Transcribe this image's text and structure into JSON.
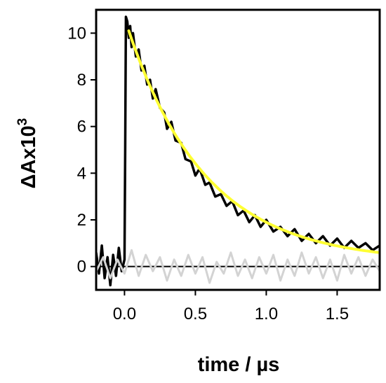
{
  "chart_data": {
    "type": "line",
    "title": "",
    "xlabel": "time / µs",
    "ylabel": {
      "base": "ΔAx10",
      "superscript": "3"
    },
    "xlim": [
      -0.2,
      1.8
    ],
    "ylim": [
      -1,
      11
    ],
    "xticks": [
      0.0,
      0.5,
      1.0,
      1.5
    ],
    "xtick_labels": [
      "0.0",
      "0.5",
      "1.0",
      "1.5"
    ],
    "yticks": [
      0,
      2,
      4,
      6,
      8,
      10
    ],
    "ytick_labels": [
      "0",
      "2",
      "4",
      "6",
      "8",
      "10"
    ],
    "grid": false,
    "legend": "none",
    "baseline_y": 0,
    "series": [
      {
        "role": "measured transient (noisy)",
        "color": "#000000",
        "points": [
          [
            -0.2,
            0.6
          ],
          [
            -0.18,
            -0.3
          ],
          [
            -0.16,
            0.9
          ],
          [
            -0.14,
            -0.5
          ],
          [
            -0.12,
            0.4
          ],
          [
            -0.1,
            -0.8
          ],
          [
            -0.08,
            0.5
          ],
          [
            -0.06,
            -0.4
          ],
          [
            -0.04,
            0.8
          ],
          [
            -0.02,
            -0.2
          ],
          [
            0.0,
            0.3
          ],
          [
            0.005,
            5.0
          ],
          [
            0.01,
            10.7
          ],
          [
            0.02,
            10.5
          ],
          [
            0.03,
            9.8
          ],
          [
            0.04,
            10.3
          ],
          [
            0.05,
            9.4
          ],
          [
            0.06,
            10.0
          ],
          [
            0.08,
            9.0
          ],
          [
            0.1,
            9.3
          ],
          [
            0.12,
            8.4
          ],
          [
            0.14,
            8.6
          ],
          [
            0.16,
            7.8
          ],
          [
            0.18,
            8.0
          ],
          [
            0.2,
            7.2
          ],
          [
            0.22,
            7.6
          ],
          [
            0.25,
            6.8
          ],
          [
            0.28,
            6.6
          ],
          [
            0.3,
            5.9
          ],
          [
            0.33,
            6.2
          ],
          [
            0.36,
            5.4
          ],
          [
            0.4,
            5.3
          ],
          [
            0.43,
            4.6
          ],
          [
            0.47,
            4.5
          ],
          [
            0.5,
            3.9
          ],
          [
            0.53,
            4.2
          ],
          [
            0.57,
            3.5
          ],
          [
            0.6,
            3.6
          ],
          [
            0.64,
            3.0
          ],
          [
            0.68,
            3.1
          ],
          [
            0.72,
            2.6
          ],
          [
            0.76,
            2.8
          ],
          [
            0.8,
            2.2
          ],
          [
            0.84,
            2.4
          ],
          [
            0.88,
            1.9
          ],
          [
            0.92,
            2.2
          ],
          [
            0.96,
            1.7
          ],
          [
            1.0,
            2.0
          ],
          [
            1.05,
            1.5
          ],
          [
            1.1,
            1.7
          ],
          [
            1.15,
            1.3
          ],
          [
            1.2,
            1.6
          ],
          [
            1.25,
            1.1
          ],
          [
            1.3,
            1.4
          ],
          [
            1.35,
            1.0
          ],
          [
            1.4,
            1.3
          ],
          [
            1.45,
            0.9
          ],
          [
            1.5,
            1.2
          ],
          [
            1.55,
            0.8
          ],
          [
            1.6,
            1.1
          ],
          [
            1.65,
            0.8
          ],
          [
            1.7,
            1.0
          ],
          [
            1.75,
            0.7
          ],
          [
            1.8,
            0.9
          ]
        ]
      },
      {
        "role": "control trace (grey)",
        "color": "#d3d3d3",
        "points": [
          [
            -0.2,
            -0.2
          ],
          [
            -0.15,
            0.4
          ],
          [
            -0.1,
            -0.5
          ],
          [
            -0.05,
            0.3
          ],
          [
            0.0,
            -0.3
          ],
          [
            0.05,
            0.7
          ],
          [
            0.1,
            -0.4
          ],
          [
            0.15,
            0.5
          ],
          [
            0.2,
            -0.2
          ],
          [
            0.25,
            0.4
          ],
          [
            0.3,
            -0.6
          ],
          [
            0.35,
            0.3
          ],
          [
            0.4,
            -0.4
          ],
          [
            0.45,
            0.5
          ],
          [
            0.5,
            -0.3
          ],
          [
            0.55,
            0.4
          ],
          [
            0.6,
            -0.7
          ],
          [
            0.65,
            0.2
          ],
          [
            0.7,
            -0.3
          ],
          [
            0.75,
            0.6
          ],
          [
            0.8,
            -0.4
          ],
          [
            0.85,
            0.3
          ],
          [
            0.9,
            -0.5
          ],
          [
            0.95,
            0.4
          ],
          [
            1.0,
            -0.3
          ],
          [
            1.05,
            0.5
          ],
          [
            1.1,
            -0.6
          ],
          [
            1.15,
            0.3
          ],
          [
            1.2,
            -0.4
          ],
          [
            1.25,
            0.6
          ],
          [
            1.3,
            -0.3
          ],
          [
            1.35,
            0.4
          ],
          [
            1.4,
            -0.5
          ],
          [
            1.45,
            0.3
          ],
          [
            1.5,
            -0.6
          ],
          [
            1.55,
            0.5
          ],
          [
            1.6,
            -0.3
          ],
          [
            1.65,
            0.4
          ],
          [
            1.7,
            -0.4
          ],
          [
            1.75,
            0.3
          ],
          [
            1.8,
            -0.2
          ]
        ]
      },
      {
        "role": "exponential fit",
        "color": "#ffff33",
        "fit": {
          "start_x": 0.03,
          "amplitude": 9.9,
          "tau_us": 0.55,
          "offset": 0.2
        }
      }
    ]
  }
}
